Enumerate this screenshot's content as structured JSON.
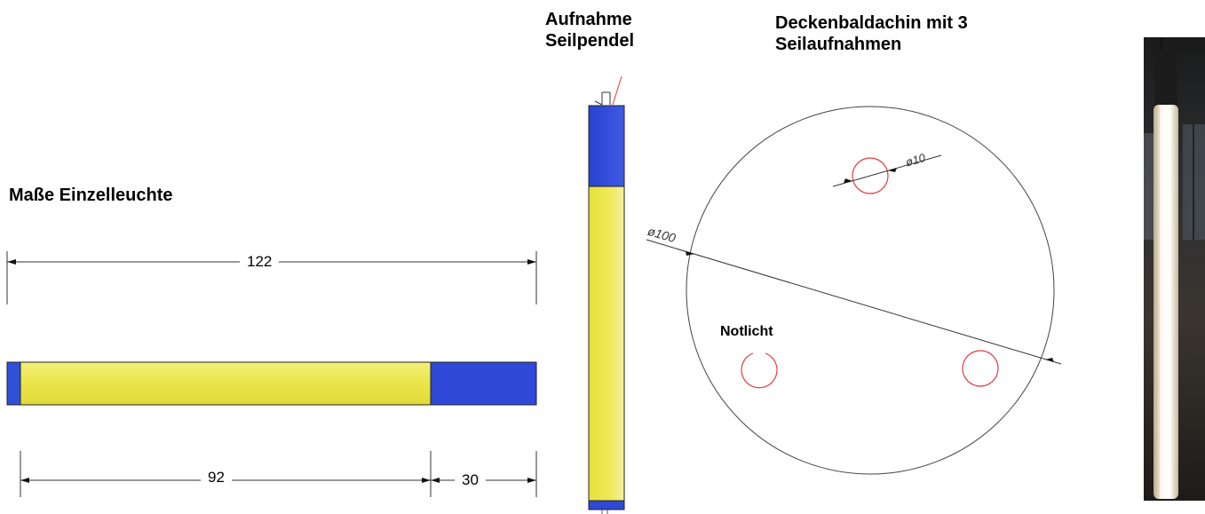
{
  "headings": {
    "single_lamp": "Maße Einzelleuchte",
    "cable_mount_line1": "Aufnahme",
    "cable_mount_line2": "Seilpendel",
    "canopy_line1": "Deckenbaldachin mit 3",
    "canopy_line2": "Seilaufnahmen"
  },
  "dimensions": {
    "total_length": "122",
    "yellow_length": "92",
    "blue_length": "30",
    "canopy_diameter": "ø100",
    "hole_diameter": "ø10"
  },
  "labels": {
    "emergency_light": "Notlicht"
  },
  "colors": {
    "blue": "#2f48d8",
    "yellow": "#ecec4a",
    "red_hole": "#e23b3b",
    "line": "#333333"
  }
}
